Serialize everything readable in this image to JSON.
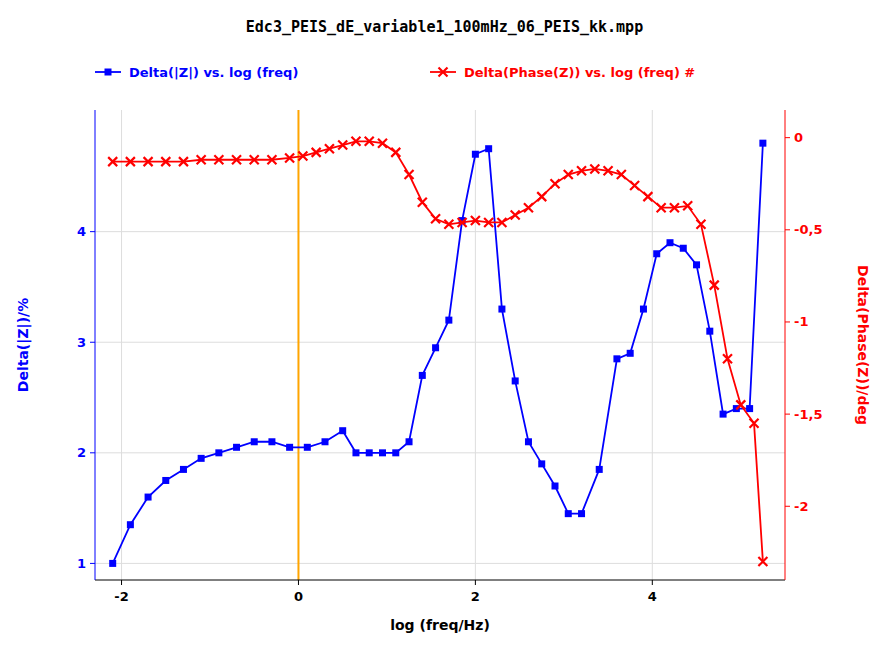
{
  "chart_data": {
    "type": "line",
    "title": "Edc3_PEIS_dE_variable1_100mHz_06_PEIS_kk.mpp",
    "x_label": "log (freq/Hz)",
    "y_label": "Delta(|Z|)/%",
    "y2_label": "Delta(Phase(Z))/deg",
    "xlim": [
      -2.3,
      5.5
    ],
    "xticks": [
      -2,
      0,
      2,
      4
    ],
    "ylim": [
      0.85,
      5.1
    ],
    "yticks": [
      1,
      2,
      3,
      4
    ],
    "y2lim": [
      -2.4,
      0.15
    ],
    "y2ticks": [
      0,
      {
        "value": -0.5,
        "label": "-0,5"
      },
      -1,
      {
        "value": -1.5,
        "label": "-1,5"
      },
      -2
    ],
    "grid": true,
    "legend": "top",
    "annotations": [
      {
        "type": "vline",
        "x": 0.0,
        "color": "#FFA500"
      }
    ],
    "series": [
      {
        "name": "Delta(|Z|) vs. log (freq)",
        "color": "#0000FF",
        "marker": "square",
        "axis": "y",
        "x": [
          -2.1,
          -1.9,
          -1.7,
          -1.5,
          -1.3,
          -1.1,
          -0.9,
          -0.7,
          -0.5,
          -0.3,
          -0.1,
          0.1,
          0.3,
          0.5,
          0.65,
          0.8,
          0.95,
          1.1,
          1.25,
          1.4,
          1.55,
          1.7,
          1.85,
          2.0,
          2.15,
          2.3,
          2.45,
          2.6,
          2.75,
          2.9,
          3.05,
          3.2,
          3.4,
          3.6,
          3.75,
          3.9,
          4.05,
          4.2,
          4.35,
          4.5,
          4.65,
          4.8,
          4.95,
          5.1,
          5.25
        ],
        "values": [
          1.0,
          1.35,
          1.6,
          1.75,
          1.85,
          1.95,
          2.0,
          2.05,
          2.1,
          2.1,
          2.05,
          2.05,
          2.1,
          2.2,
          2.0,
          2.0,
          2.0,
          2.0,
          2.1,
          2.7,
          2.95,
          3.2,
          4.1,
          4.7,
          4.75,
          3.3,
          2.65,
          2.1,
          1.9,
          1.7,
          1.45,
          1.45,
          1.85,
          2.85,
          2.9,
          3.3,
          3.8,
          3.9,
          3.85,
          3.7,
          3.1,
          2.35,
          2.4,
          2.4,
          4.8
        ]
      },
      {
        "name": "Delta(Phase(Z)) vs. log (freq) #",
        "color": "#FF0000",
        "marker": "x",
        "axis": "y2",
        "x": [
          -2.1,
          -1.9,
          -1.7,
          -1.5,
          -1.3,
          -1.1,
          -0.9,
          -0.7,
          -0.5,
          -0.3,
          -0.1,
          0.05,
          0.2,
          0.35,
          0.5,
          0.65,
          0.8,
          0.95,
          1.1,
          1.25,
          1.4,
          1.55,
          1.7,
          1.85,
          2.0,
          2.15,
          2.3,
          2.45,
          2.6,
          2.75,
          2.9,
          3.05,
          3.2,
          3.35,
          3.5,
          3.65,
          3.8,
          3.95,
          4.1,
          4.25,
          4.4,
          4.55,
          4.7,
          4.85,
          5.0,
          5.15,
          5.25
        ],
        "values": [
          -0.13,
          -0.13,
          -0.13,
          -0.13,
          -0.13,
          -0.12,
          -0.12,
          -0.12,
          -0.12,
          -0.12,
          -0.11,
          -0.1,
          -0.08,
          -0.06,
          -0.04,
          -0.02,
          -0.02,
          -0.03,
          -0.08,
          -0.2,
          -0.35,
          -0.44,
          -0.47,
          -0.46,
          -0.45,
          -0.46,
          -0.46,
          -0.42,
          -0.38,
          -0.32,
          -0.25,
          -0.2,
          -0.18,
          -0.17,
          -0.18,
          -0.2,
          -0.26,
          -0.32,
          -0.38,
          -0.38,
          -0.37,
          -0.47,
          -0.8,
          -1.2,
          -1.45,
          -1.55,
          -2.3
        ]
      }
    ]
  }
}
